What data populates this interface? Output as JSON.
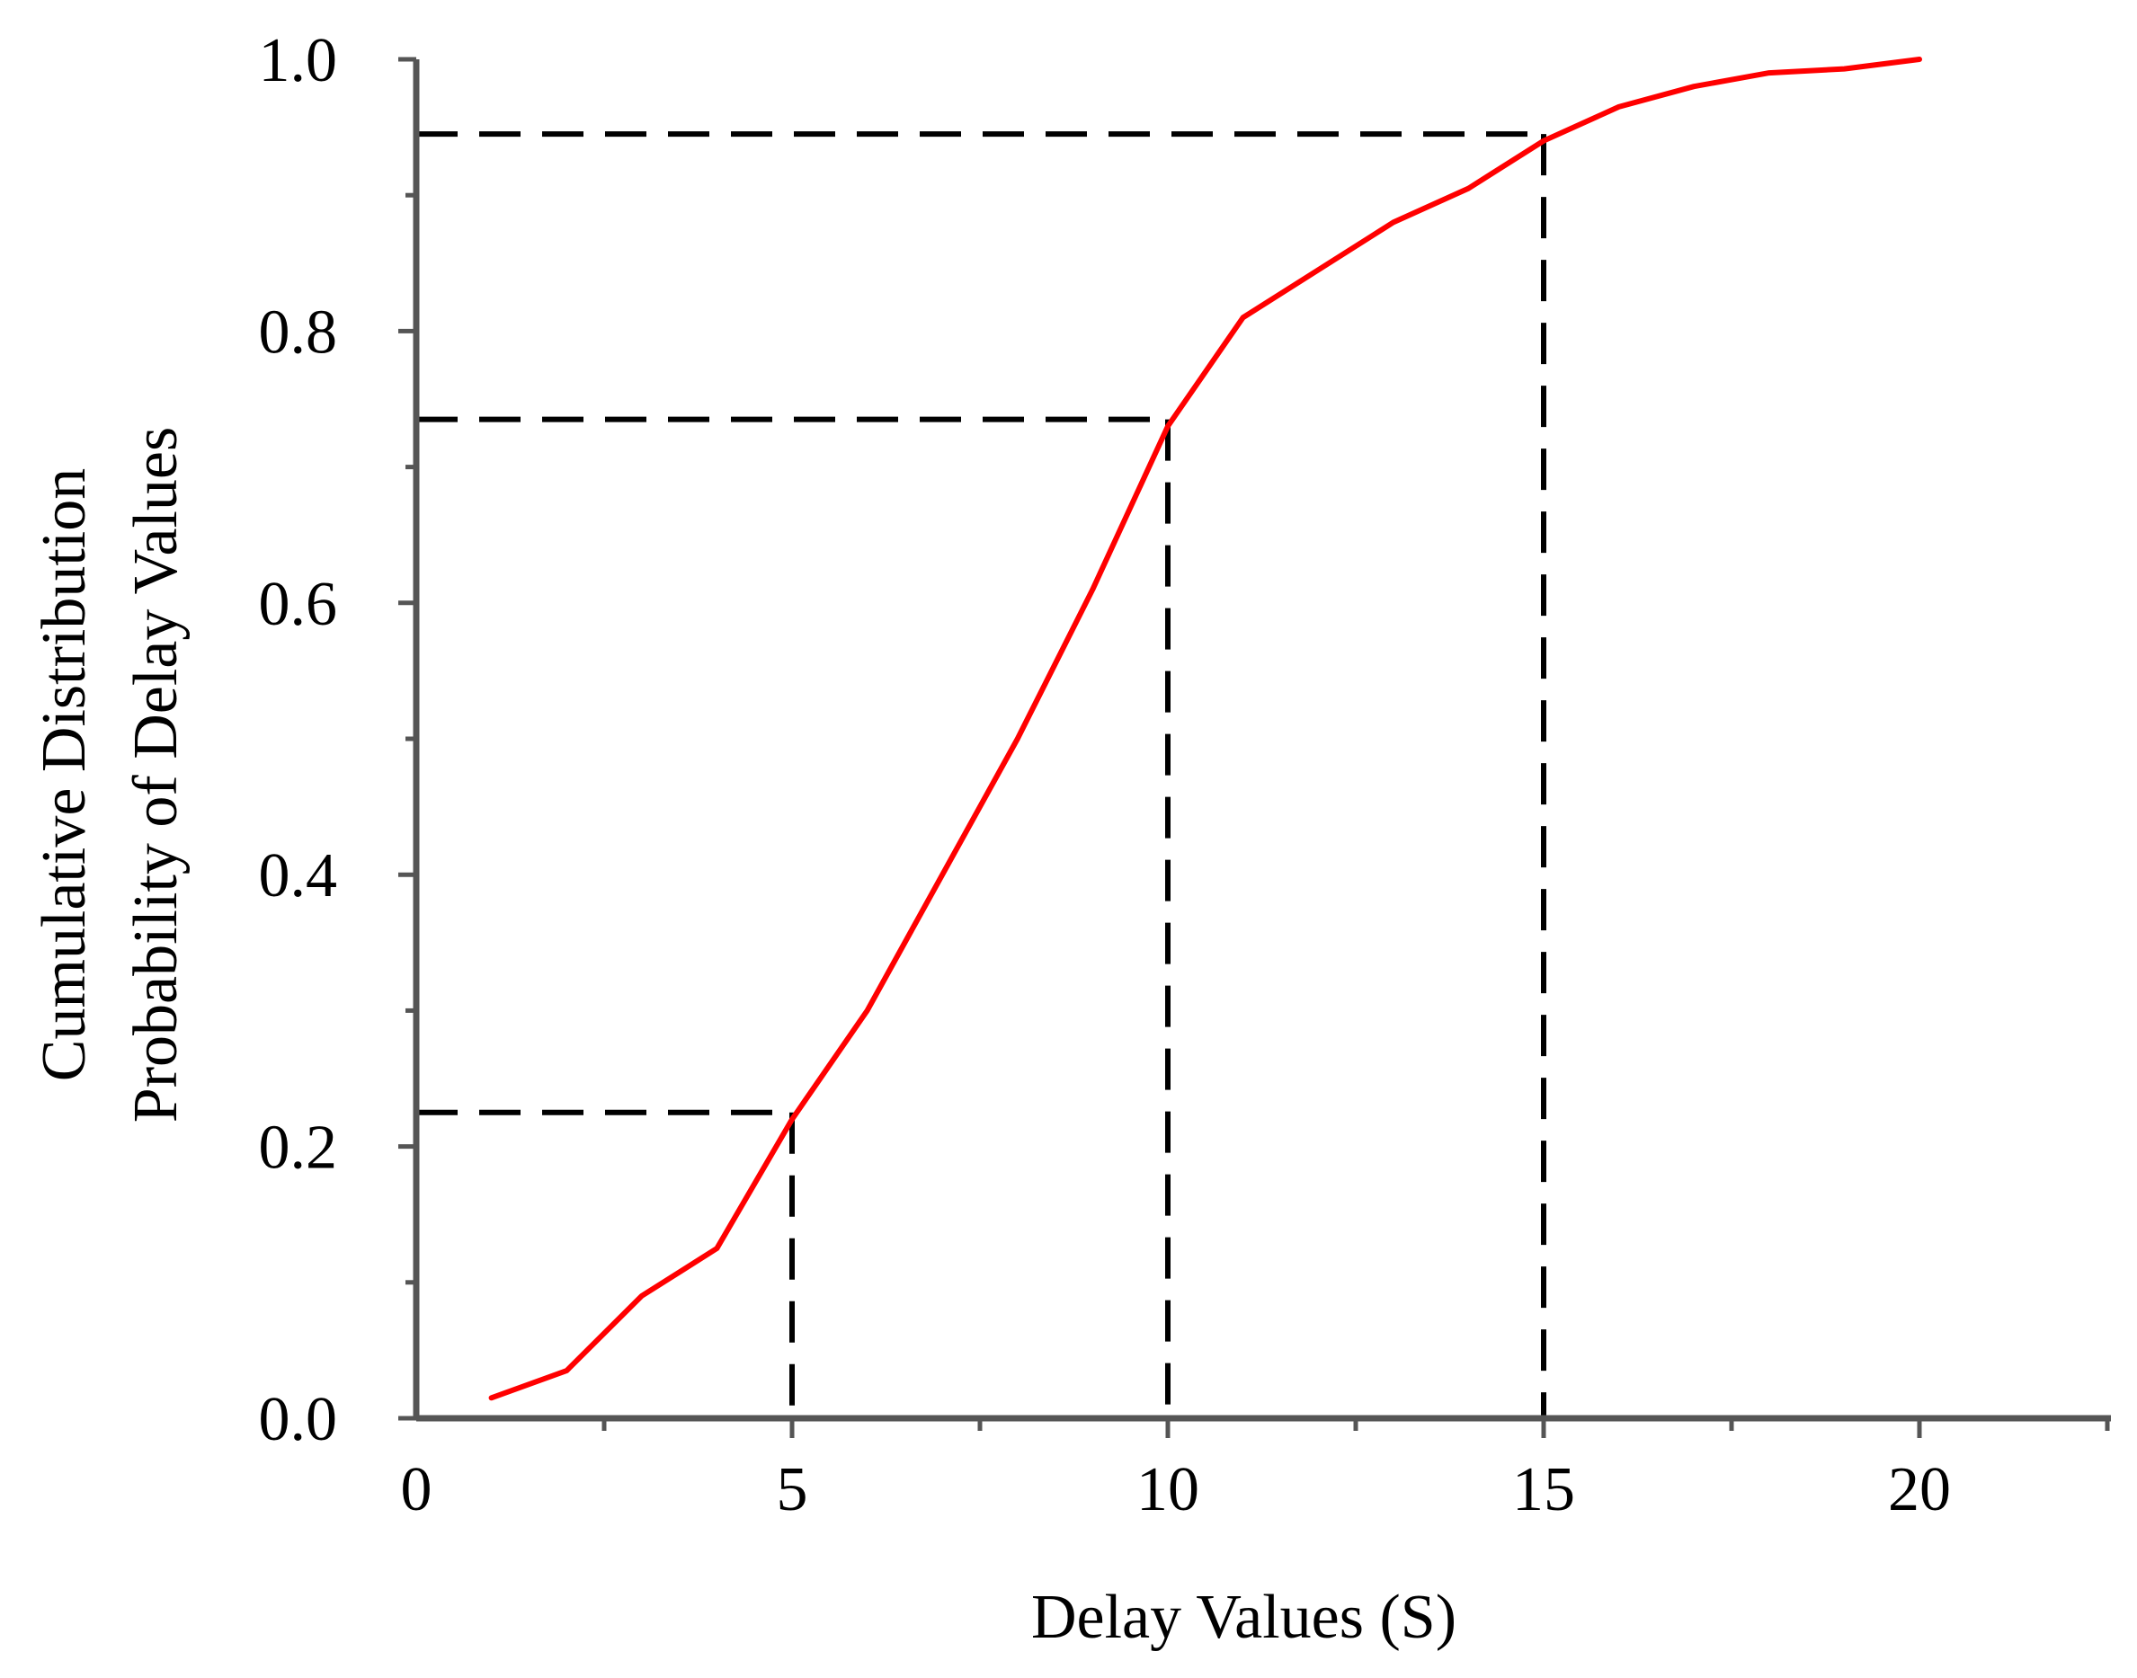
{
  "chart_data": {
    "type": "line",
    "title": "",
    "xlabel": "Delay Values (S)",
    "ylabel_lines": [
      "Cumulative Distribution",
      "Probability of Delay Values"
    ],
    "xlim": [
      0,
      22.5
    ],
    "ylim": [
      0,
      1.0
    ],
    "x_ticks": [
      0,
      5,
      10,
      15,
      20
    ],
    "x_tick_labels": [
      "0",
      "5",
      "10",
      "15",
      "20"
    ],
    "y_ticks": [
      0.0,
      0.2,
      0.4,
      0.6,
      0.8,
      1.0
    ],
    "y_tick_labels": [
      "0.0",
      "0.2",
      "0.4",
      "0.6",
      "0.8",
      "1.0"
    ],
    "x_minor_step": 2.5,
    "y_minor_step": 0.1,
    "grid": false,
    "series": [
      {
        "color": "#ff0000",
        "x": [
          1,
          2,
          3,
          4,
          5,
          6,
          7,
          8,
          9,
          10,
          11,
          12,
          13,
          14,
          15,
          16,
          17,
          18,
          19,
          20
        ],
        "y": [
          0.015,
          0.035,
          0.09,
          0.125,
          0.22,
          0.3,
          0.4,
          0.5,
          0.61,
          0.73,
          0.81,
          0.845,
          0.88,
          0.905,
          0.94,
          0.965,
          0.98,
          0.99,
          0.993,
          1.0
        ]
      }
    ],
    "reference_lines": [
      {
        "x": 5,
        "y": 0.225,
        "color": "#000000",
        "style": "dashed"
      },
      {
        "x": 10,
        "y": 0.735,
        "color": "#000000",
        "style": "dashed"
      },
      {
        "x": 15,
        "y": 0.945,
        "color": "#000000",
        "style": "dashed"
      }
    ]
  }
}
